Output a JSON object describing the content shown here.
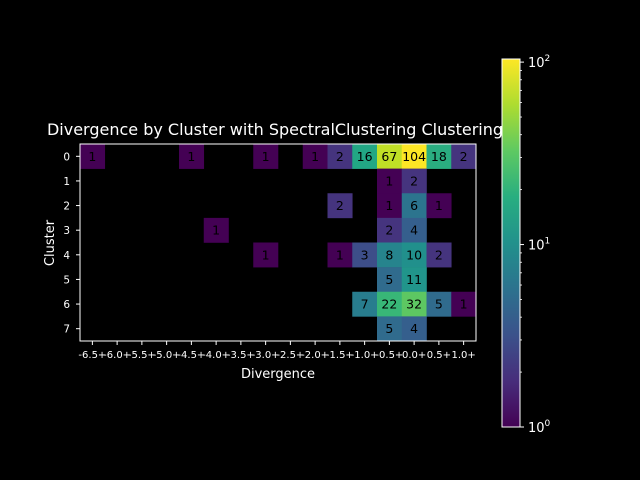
{
  "chart_data": {
    "type": "heatmap",
    "title": "Divergence by Cluster with SpectralClustering Clustering",
    "xlabel": "Divergence",
    "ylabel": "Cluster",
    "x_tick_labels": [
      "-6.5+",
      "-6.0+",
      "-5.5+",
      "-5.0+",
      "-4.5+",
      "-4.0+",
      "-3.5+",
      "-3.0+",
      "-2.5+",
      "-2.0+",
      "-1.5+",
      "-1.0+",
      "-0.5+",
      "0.0+",
      "0.5+",
      "1.0+"
    ],
    "y_tick_labels": [
      "0",
      "1",
      "2",
      "3",
      "4",
      "5",
      "6",
      "7"
    ],
    "colorscale": "viridis",
    "color_scale_type": "log",
    "color_range": [
      1,
      104
    ],
    "colorbar_tick_labels": [
      "10^0",
      "10^1",
      "10^2"
    ],
    "cells": [
      {
        "row": 0,
        "col": 0,
        "value": 1
      },
      {
        "row": 0,
        "col": 4,
        "value": 1
      },
      {
        "row": 0,
        "col": 7,
        "value": 1
      },
      {
        "row": 0,
        "col": 9,
        "value": 1
      },
      {
        "row": 0,
        "col": 10,
        "value": 2
      },
      {
        "row": 0,
        "col": 11,
        "value": 16
      },
      {
        "row": 0,
        "col": 12,
        "value": 67
      },
      {
        "row": 0,
        "col": 13,
        "value": 104
      },
      {
        "row": 0,
        "col": 14,
        "value": 18
      },
      {
        "row": 0,
        "col": 15,
        "value": 2
      },
      {
        "row": 1,
        "col": 12,
        "value": 1
      },
      {
        "row": 1,
        "col": 13,
        "value": 2
      },
      {
        "row": 2,
        "col": 10,
        "value": 2
      },
      {
        "row": 2,
        "col": 12,
        "value": 1
      },
      {
        "row": 2,
        "col": 13,
        "value": 6
      },
      {
        "row": 2,
        "col": 14,
        "value": 1
      },
      {
        "row": 3,
        "col": 5,
        "value": 1
      },
      {
        "row": 3,
        "col": 12,
        "value": 2
      },
      {
        "row": 3,
        "col": 13,
        "value": 4
      },
      {
        "row": 4,
        "col": 7,
        "value": 1
      },
      {
        "row": 4,
        "col": 10,
        "value": 1
      },
      {
        "row": 4,
        "col": 11,
        "value": 3
      },
      {
        "row": 4,
        "col": 12,
        "value": 8
      },
      {
        "row": 4,
        "col": 13,
        "value": 10
      },
      {
        "row": 4,
        "col": 14,
        "value": 2
      },
      {
        "row": 5,
        "col": 12,
        "value": 5
      },
      {
        "row": 5,
        "col": 13,
        "value": 11
      },
      {
        "row": 6,
        "col": 11,
        "value": 7
      },
      {
        "row": 6,
        "col": 12,
        "value": 22
      },
      {
        "row": 6,
        "col": 13,
        "value": 32
      },
      {
        "row": 6,
        "col": 14,
        "value": 5
      },
      {
        "row": 6,
        "col": 15,
        "value": 1
      },
      {
        "row": 7,
        "col": 12,
        "value": 5
      },
      {
        "row": 7,
        "col": 13,
        "value": 4
      }
    ]
  }
}
